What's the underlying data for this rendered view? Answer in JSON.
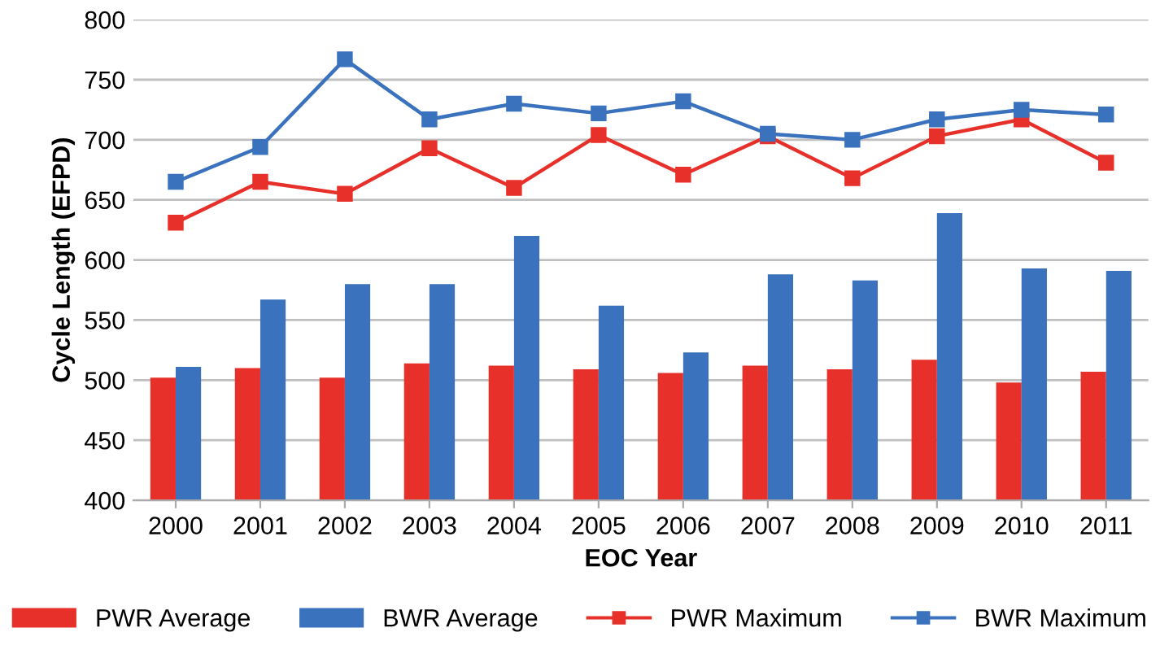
{
  "chart_data": {
    "type": "bar",
    "xlabel": "EOC Year",
    "ylabel": "Cycle Length (EFPD)",
    "categories": [
      "2000",
      "2001",
      "2002",
      "2003",
      "2004",
      "2005",
      "2006",
      "2007",
      "2008",
      "2009",
      "2010",
      "2011"
    ],
    "series": [
      {
        "name": "PWR Average",
        "color": "#e8302a",
        "values": [
          502,
          510,
          502,
          514,
          512,
          509,
          506,
          512,
          509,
          517,
          498,
          507
        ]
      },
      {
        "name": "BWR Average",
        "color": "#3b72be",
        "values": [
          511,
          567,
          580,
          580,
          620,
          562,
          523,
          588,
          583,
          639,
          593,
          591
        ]
      },
      {
        "name": "PWR Maximum",
        "type": "line",
        "color": "#e8302a",
        "marker": "square",
        "values": [
          631,
          665,
          655,
          693,
          660,
          704,
          671,
          703,
          668,
          703,
          717,
          681
        ]
      },
      {
        "name": "BWR Maximum",
        "type": "line",
        "color": "#3b72be",
        "marker": "square",
        "values": [
          665,
          694,
          767,
          717,
          730,
          722,
          732,
          705,
          700,
          717,
          725,
          721
        ]
      }
    ],
    "ylim": [
      400,
      800
    ],
    "yticks": [
      400,
      450,
      500,
      550,
      600,
      650,
      700,
      750,
      800
    ],
    "grid": "y",
    "legend": "bottom"
  }
}
